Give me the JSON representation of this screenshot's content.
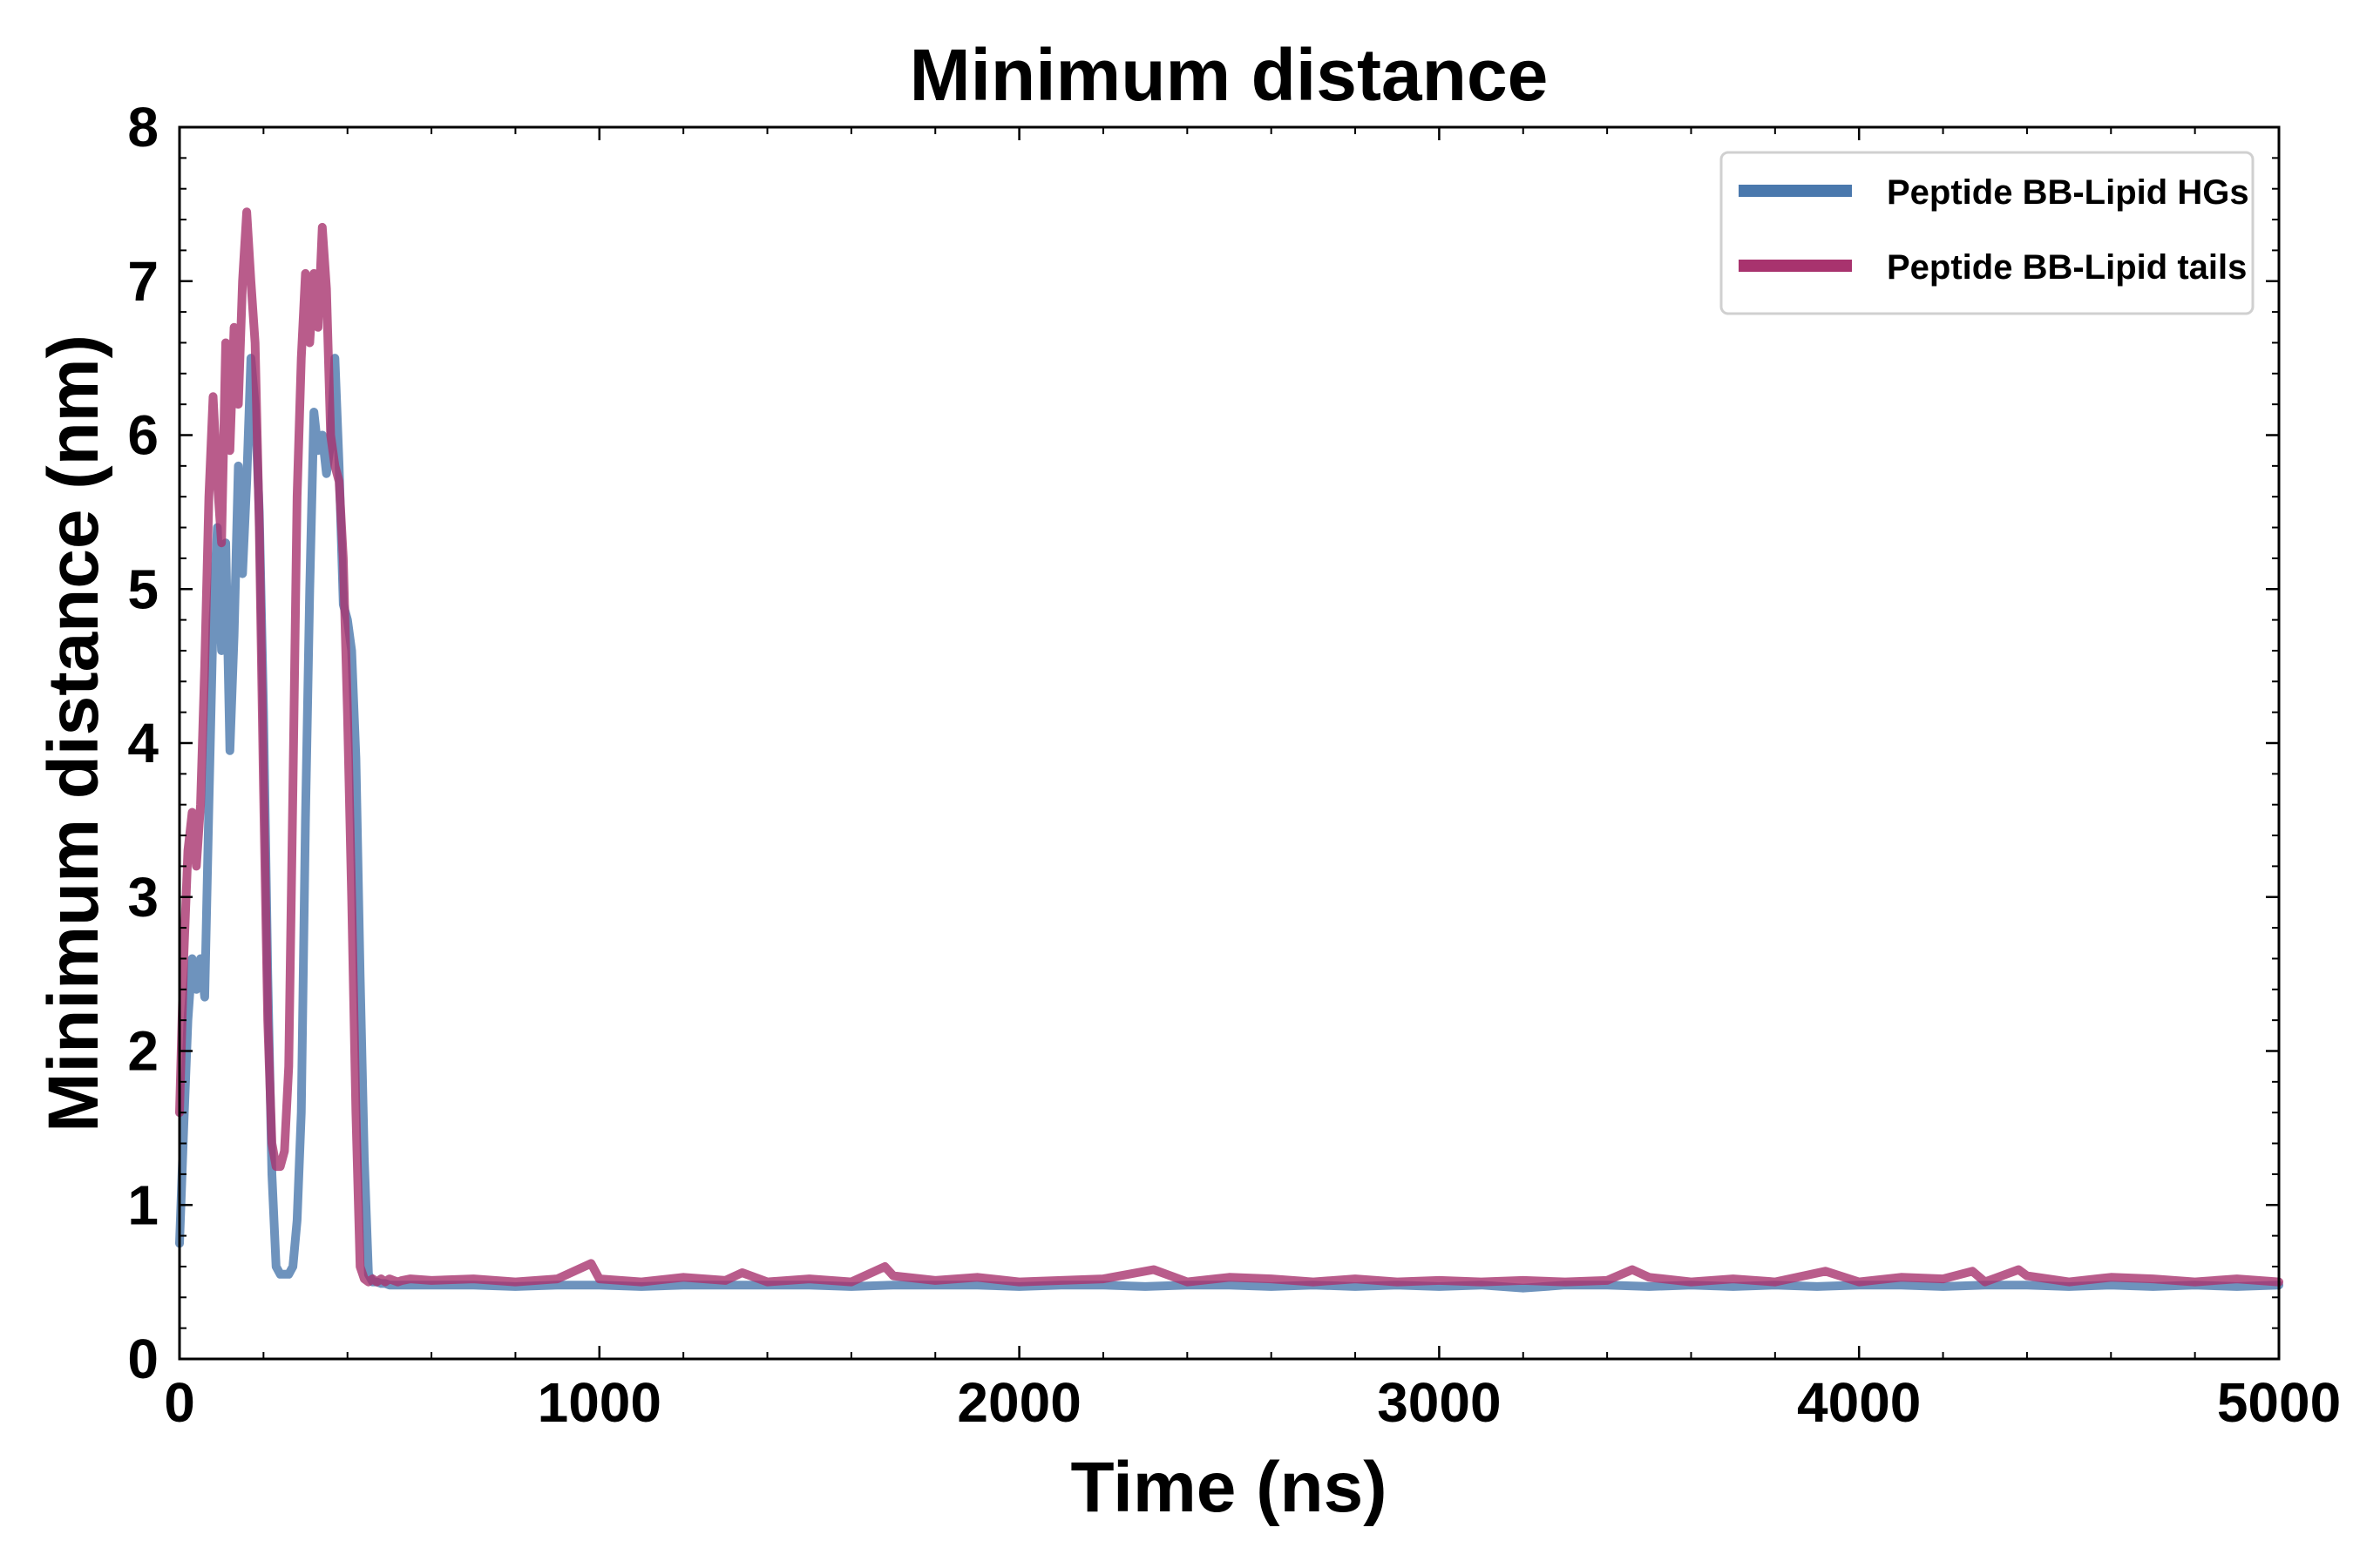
{
  "chart_data": {
    "type": "line",
    "title": "Minimum distance",
    "xlabel": "Time (ns)",
    "ylabel": "Minimum distance (nm)",
    "xlim": [
      0,
      5000
    ],
    "ylim": [
      0,
      8
    ],
    "xticks": [
      0,
      1000,
      2000,
      3000,
      4000,
      5000
    ],
    "yticks": [
      0,
      1,
      2,
      3,
      4,
      5,
      6,
      7,
      8
    ],
    "xtick_labels": [
      "0",
      "1000",
      "2000",
      "3000",
      "4000",
      "5000"
    ],
    "ytick_labels": [
      "0",
      "1",
      "2",
      "3",
      "4",
      "5",
      "6",
      "7",
      "8"
    ],
    "grid": false,
    "legend_position": "top-right",
    "series": [
      {
        "name": "Peptide BB-Lipid HGs",
        "color": "#4a78ad",
        "x": [
          0,
          10,
          20,
          30,
          40,
          50,
          60,
          70,
          80,
          90,
          100,
          110,
          120,
          130,
          140,
          150,
          160,
          170,
          180,
          190,
          200,
          210,
          220,
          230,
          240,
          250,
          260,
          270,
          280,
          290,
          300,
          310,
          320,
          330,
          340,
          350,
          360,
          370,
          380,
          390,
          400,
          410,
          420,
          430,
          440,
          450,
          460,
          470,
          480,
          490,
          500,
          510,
          520,
          530,
          550,
          600,
          700,
          800,
          900,
          1000,
          1100,
          1200,
          1300,
          1400,
          1500,
          1600,
          1700,
          1800,
          1900,
          2000,
          2100,
          2200,
          2300,
          2400,
          2500,
          2600,
          2700,
          2800,
          2900,
          3000,
          3100,
          3200,
          3300,
          3400,
          3500,
          3600,
          3700,
          3800,
          3900,
          4000,
          4100,
          4200,
          4300,
          4400,
          4500,
          4600,
          4700,
          4800,
          4900,
          5000
        ],
        "values": [
          0.75,
          1.5,
          2.2,
          2.6,
          2.4,
          2.6,
          2.35,
          3.6,
          4.8,
          5.4,
          4.6,
          5.3,
          3.95,
          4.7,
          5.8,
          5.1,
          5.7,
          6.5,
          6.2,
          5.5,
          4.2,
          2.5,
          1.2,
          0.6,
          0.55,
          0.55,
          0.55,
          0.6,
          0.9,
          1.6,
          3.5,
          5.0,
          6.15,
          5.9,
          6.0,
          5.75,
          5.95,
          6.5,
          5.8,
          4.9,
          4.8,
          4.6,
          3.9,
          2.5,
          1.3,
          0.55,
          0.5,
          0.5,
          0.49,
          0.49,
          0.48,
          0.48,
          0.48,
          0.48,
          0.48,
          0.48,
          0.48,
          0.47,
          0.48,
          0.48,
          0.47,
          0.48,
          0.48,
          0.48,
          0.48,
          0.47,
          0.48,
          0.48,
          0.48,
          0.47,
          0.48,
          0.48,
          0.47,
          0.48,
          0.48,
          0.47,
          0.48,
          0.47,
          0.48,
          0.47,
          0.48,
          0.46,
          0.48,
          0.48,
          0.47,
          0.48,
          0.47,
          0.48,
          0.47,
          0.48,
          0.48,
          0.47,
          0.48,
          0.48,
          0.47,
          0.48,
          0.47,
          0.48,
          0.47,
          0.48
        ]
      },
      {
        "name": "Peptide BB-Lipid tails",
        "color": "#a8336e",
        "x": [
          0,
          10,
          20,
          30,
          40,
          50,
          60,
          70,
          80,
          90,
          100,
          110,
          120,
          130,
          140,
          150,
          160,
          170,
          180,
          190,
          200,
          210,
          220,
          230,
          240,
          250,
          260,
          270,
          280,
          290,
          300,
          310,
          320,
          330,
          340,
          350,
          360,
          370,
          380,
          390,
          400,
          410,
          420,
          430,
          440,
          450,
          460,
          470,
          480,
          490,
          500,
          510,
          520,
          530,
          550,
          600,
          700,
          800,
          900,
          980,
          1000,
          1100,
          1200,
          1300,
          1340,
          1400,
          1500,
          1600,
          1680,
          1700,
          1800,
          1900,
          2000,
          2100,
          2200,
          2320,
          2400,
          2500,
          2600,
          2700,
          2800,
          2900,
          3000,
          3100,
          3200,
          3300,
          3400,
          3460,
          3500,
          3600,
          3700,
          3800,
          3920,
          4000,
          4100,
          4200,
          4270,
          4300,
          4380,
          4400,
          4500,
          4600,
          4700,
          4800,
          4900,
          5000
        ],
        "values": [
          1.6,
          2.6,
          3.3,
          3.55,
          3.2,
          3.6,
          4.5,
          5.6,
          6.25,
          5.7,
          5.3,
          6.6,
          5.9,
          6.7,
          6.2,
          7.0,
          7.45,
          7.0,
          6.6,
          5.4,
          3.7,
          2.2,
          1.4,
          1.25,
          1.25,
          1.35,
          1.9,
          3.7,
          5.6,
          6.5,
          7.05,
          6.6,
          7.05,
          6.7,
          7.35,
          6.95,
          6.0,
          5.8,
          5.7,
          5.2,
          4.2,
          3.0,
          1.6,
          0.6,
          0.52,
          0.5,
          0.52,
          0.5,
          0.52,
          0.5,
          0.52,
          0.51,
          0.5,
          0.51,
          0.52,
          0.51,
          0.52,
          0.5,
          0.52,
          0.62,
          0.52,
          0.5,
          0.53,
          0.51,
          0.56,
          0.5,
          0.52,
          0.5,
          0.6,
          0.54,
          0.51,
          0.53,
          0.5,
          0.51,
          0.52,
          0.58,
          0.5,
          0.53,
          0.52,
          0.5,
          0.52,
          0.5,
          0.51,
          0.5,
          0.51,
          0.5,
          0.51,
          0.58,
          0.53,
          0.5,
          0.52,
          0.5,
          0.57,
          0.5,
          0.53,
          0.52,
          0.57,
          0.5,
          0.58,
          0.54,
          0.5,
          0.53,
          0.52,
          0.5,
          0.52,
          0.5
        ]
      }
    ]
  }
}
